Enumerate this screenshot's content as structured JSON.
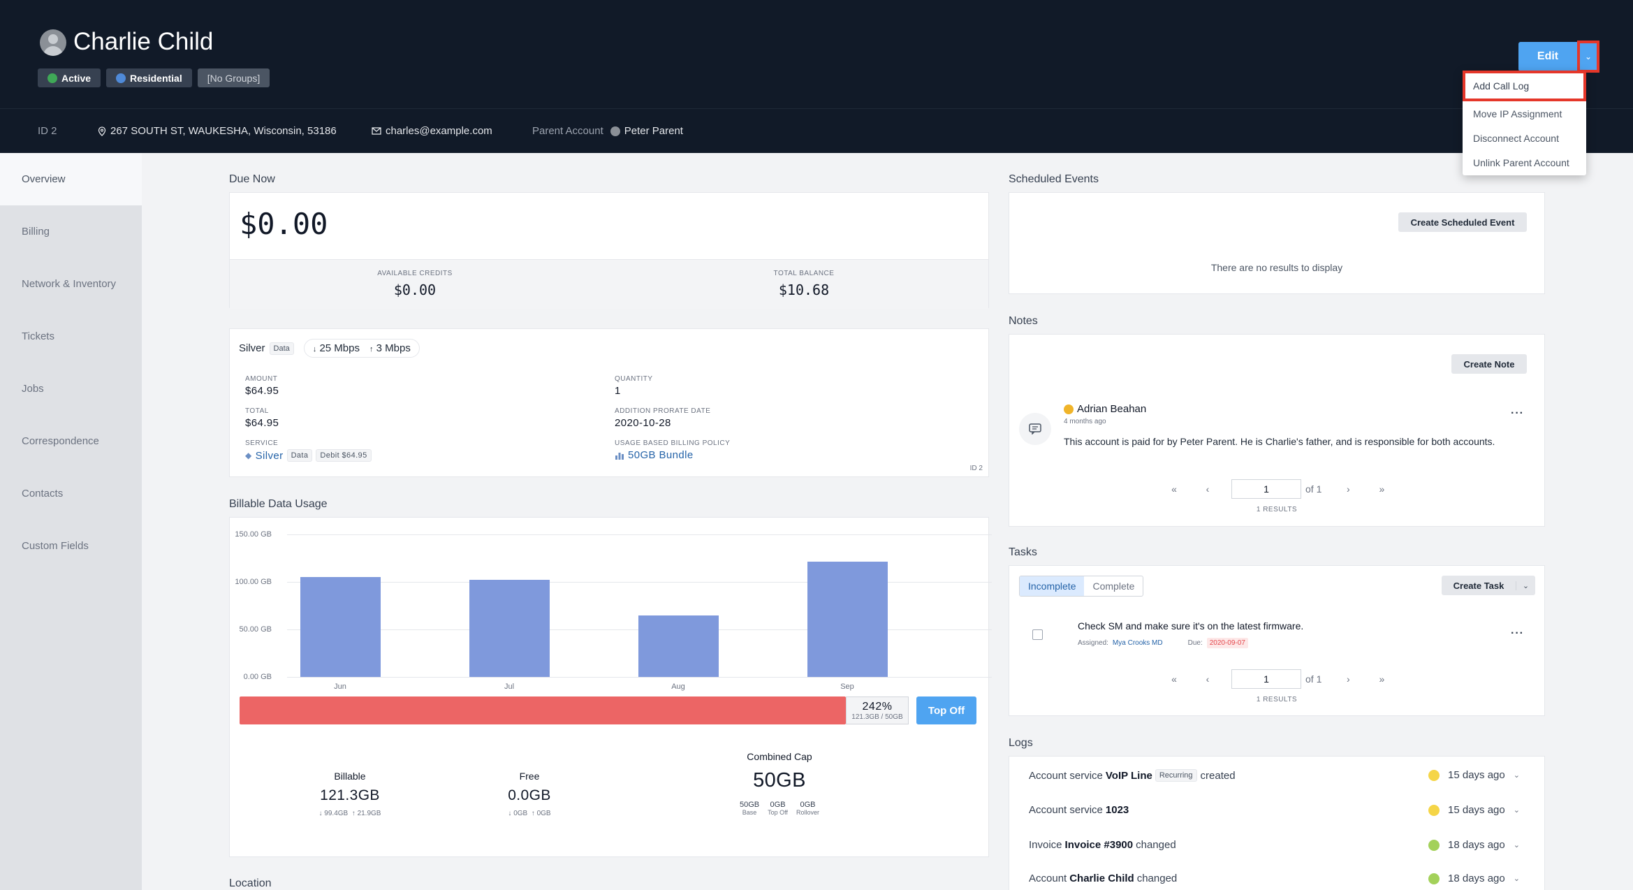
{
  "header": {
    "name": "Charlie Child",
    "badges": [
      {
        "label": "Active",
        "color": "#3fa857"
      },
      {
        "label": "Residential",
        "color": "#4f8ad8"
      },
      {
        "label": "[No Groups]"
      }
    ],
    "edit_label": "Edit",
    "dropdown": [
      "Add Call Log",
      "Move IP Assignment",
      "Disconnect Account",
      "Unlink Parent Account"
    ]
  },
  "subbar": {
    "id": "ID 2",
    "address": "267 SOUTH ST, WAUKESHA, Wisconsin, 53186",
    "email": "charles@example.com",
    "parent_label": "Parent Account",
    "parent_name": "Peter Parent"
  },
  "sidebar": [
    "Overview",
    "Billing",
    "Network & Inventory",
    "Tickets",
    "Jobs",
    "Correspondence",
    "Contacts",
    "Custom Fields"
  ],
  "due": {
    "title": "Due Now",
    "amount": "$0.00",
    "credits_label": "AVAILABLE CREDITS",
    "credits_value": "$0.00",
    "balance_label": "TOTAL BALANCE",
    "balance_value": "$10.68"
  },
  "service": {
    "name": "Silver",
    "tag": "Data",
    "down": "25 Mbps",
    "up": "3 Mbps",
    "amount_label": "AMOUNT",
    "amount": "$64.95",
    "quantity_label": "QUANTITY",
    "quantity": "1",
    "total_label": "TOTAL",
    "total": "$64.95",
    "prorate_label": "ADDITION PRORATE DATE",
    "prorate": "2020-10-28",
    "service_label": "SERVICE",
    "service_name": "Silver",
    "service_debit": "Debit $64.95",
    "policy_label": "USAGE BASED BILLING POLICY",
    "policy": "50GB Bundle",
    "id": "ID 2"
  },
  "usage": {
    "title": "Billable Data Usage",
    "percent": "242%",
    "ratio": "121.3GB / 50GB",
    "topoff_label": "Top Off",
    "billable_label": "Billable",
    "billable": "121.3GB",
    "billable_down": "99.4GB",
    "billable_up": "21.9GB",
    "free_label": "Free",
    "free": "0.0GB",
    "free_down": "0GB",
    "free_up": "0GB",
    "cap_label": "Combined Cap",
    "cap": "50GB",
    "cap_parts": [
      {
        "value": "50GB",
        "label": "Base"
      },
      {
        "value": "0GB",
        "label": "Top Off"
      },
      {
        "value": "0GB",
        "label": "Rollover"
      }
    ]
  },
  "chart_data": {
    "type": "bar",
    "categories": [
      "Jun",
      "Jul",
      "Aug",
      "Sep"
    ],
    "values": [
      105,
      102,
      65,
      121
    ],
    "yticks": [
      "150.00 GB",
      "100.00 GB",
      "50.00 GB",
      "0.00 GB"
    ],
    "ylim": [
      0,
      150
    ],
    "grid": true,
    "color": "#7f99dc"
  },
  "location_title": "Location",
  "scheduled": {
    "title": "Scheduled Events",
    "button": "Create Scheduled Event",
    "empty": "There are no results to display"
  },
  "notes": {
    "title": "Notes",
    "button": "Create Note",
    "author": "Adrian Beahan",
    "time": "4 months ago",
    "text": "This account is paid for by Peter Parent. He is Charlie's father, and is responsible for both accounts.",
    "page": "1",
    "of": "of 1",
    "results": "1 RESULTS"
  },
  "tasks": {
    "title": "Tasks",
    "tab_incomplete": "Incomplete",
    "tab_complete": "Complete",
    "button": "Create Task",
    "task": "Check SM and make sure it's on the latest firmware.",
    "assigned_label": "Assigned:",
    "assigned": "Mya Crooks MD",
    "due_label": "Due:",
    "due": "2020-09-07",
    "page": "1",
    "of": "of 1",
    "results": "1 RESULTS"
  },
  "logs": {
    "title": "Logs",
    "rows": [
      {
        "pre": "Account service",
        "bold": "VoIP Line",
        "tag": "Recurring",
        "post": "created",
        "time": "15 days ago"
      },
      {
        "pre": "Account service",
        "bold": "1023",
        "tag": "",
        "post": "",
        "time": "15 days ago"
      },
      {
        "pre": "Invoice",
        "bold": "Invoice #3900",
        "tag": "",
        "post": "changed",
        "time": "18 days ago"
      },
      {
        "pre": "Account",
        "bold": "Charlie Child",
        "tag": "",
        "post": "changed",
        "time": "18 days ago"
      }
    ]
  }
}
